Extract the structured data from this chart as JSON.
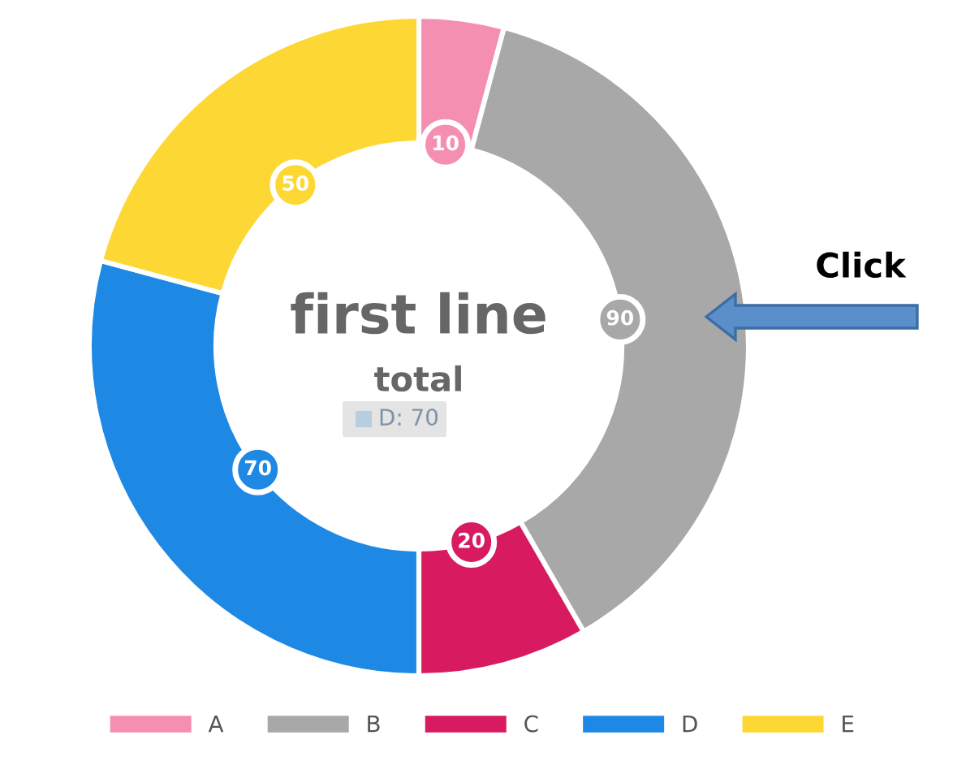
{
  "chart_data": {
    "type": "donut",
    "title": "first line",
    "subtitle": "total",
    "categories": [
      "A",
      "B",
      "C",
      "D",
      "E"
    ],
    "values": [
      10,
      90,
      20,
      70,
      50
    ],
    "colors": [
      "#f48fb1",
      "#a8a8a8",
      "#d81b60",
      "#1e88e5",
      "#fdd835"
    ],
    "data_labels": true,
    "legend": "bottom",
    "annotations": [
      "D: 70",
      "Click"
    ]
  }
}
